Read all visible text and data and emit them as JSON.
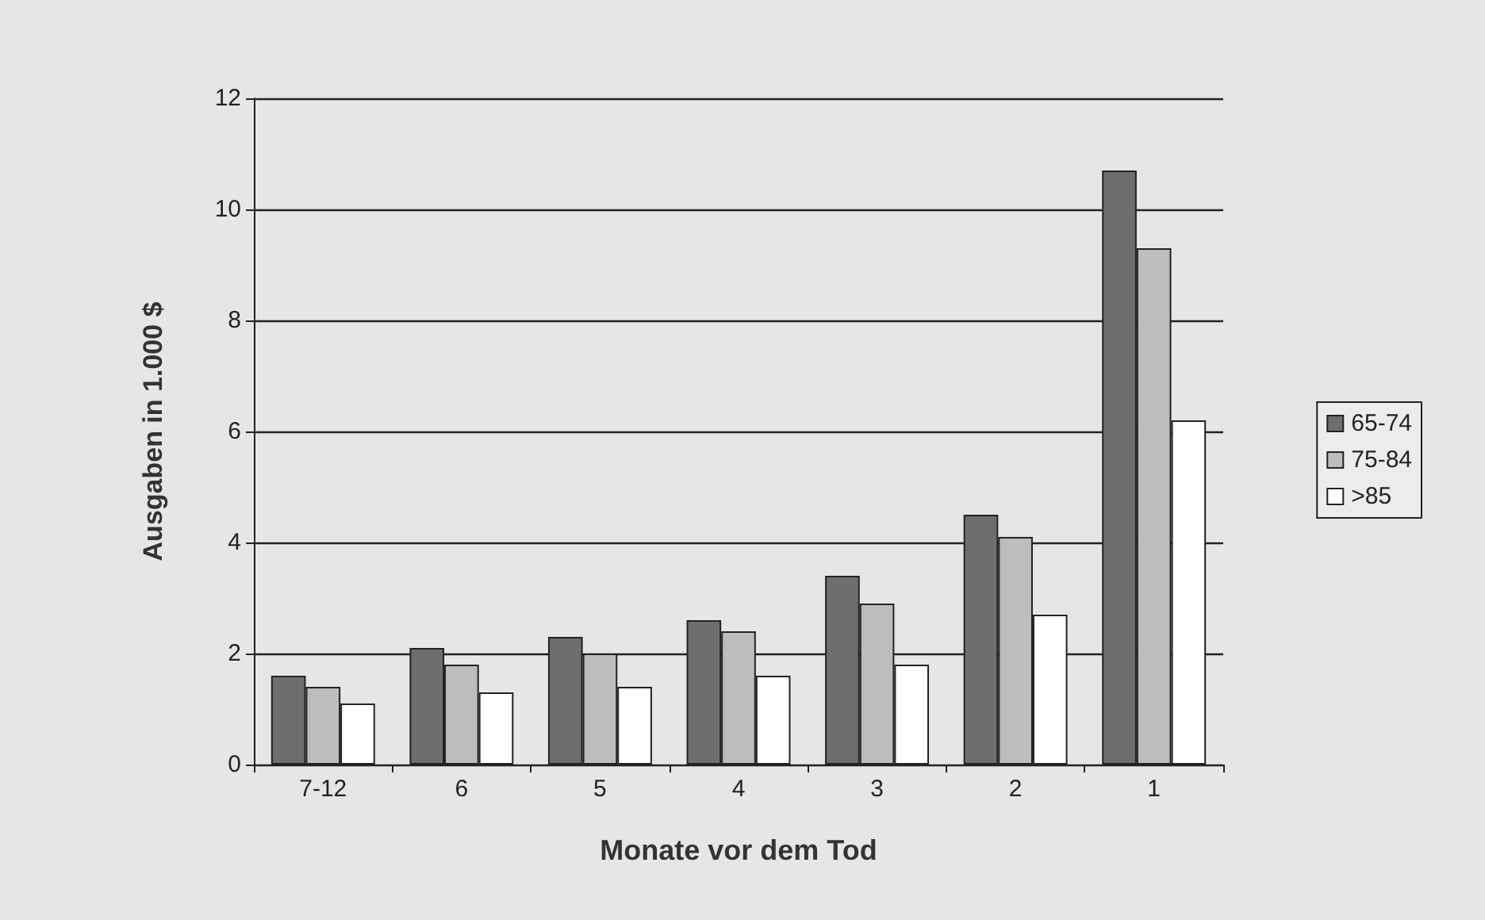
{
  "chart_data": {
    "type": "bar",
    "xlabel": "Monate vor dem Tod",
    "ylabel": "Ausgaben in 1.000 $",
    "categories": [
      "7-12",
      "6",
      "5",
      "4",
      "3",
      "2",
      "1"
    ],
    "series": [
      {
        "name": "65-74",
        "color": "#6e6e6e",
        "values": [
          1.6,
          2.1,
          2.3,
          2.6,
          3.4,
          4.5,
          10.7
        ]
      },
      {
        "name": "75-84",
        "color": "#bdbdbd",
        "values": [
          1.4,
          1.8,
          2.0,
          2.4,
          2.9,
          4.1,
          9.3
        ]
      },
      {
        "name": ">85",
        "color": "#ffffff",
        "values": [
          1.1,
          1.3,
          1.4,
          1.6,
          1.8,
          2.7,
          6.2
        ]
      }
    ],
    "ylim": [
      0,
      12
    ],
    "yticks": [
      0,
      2,
      4,
      6,
      8,
      10,
      12
    ],
    "grid": "y",
    "legend": "right"
  }
}
